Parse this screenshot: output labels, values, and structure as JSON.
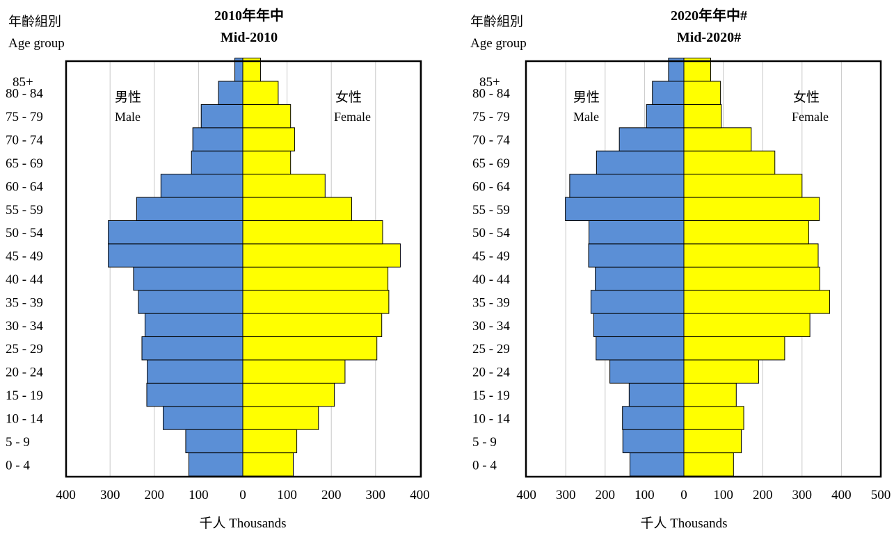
{
  "colors": {
    "male": "#5b8fd6",
    "female": "#ffff00",
    "grid": "#c8c8c8",
    "frame": "#000000"
  },
  "charts": [
    {
      "title_line1": "2010年年中",
      "title_line2": "Mid-2010",
      "agegroup_zh": "年齡組別",
      "agegroup_en": "Age group",
      "male_zh": "男性",
      "male_en": "Male",
      "female_zh": "女性",
      "female_en": "Female",
      "xlabel": "千人  Thousands",
      "x_ticks": [
        "400",
        "300",
        "200",
        "100",
        "0",
        "100",
        "200",
        "300",
        "400"
      ]
    },
    {
      "title_line1": "2020年年中#",
      "title_line2": "Mid-2020#",
      "agegroup_zh": "年齡組別",
      "agegroup_en": "Age group",
      "male_zh": "男性",
      "male_en": "Male",
      "female_zh": "女性",
      "female_en": "Female",
      "xlabel": "千人  Thousands",
      "x_ticks": [
        "400",
        "300",
        "200",
        "100",
        "0",
        "100",
        "200",
        "300",
        "400",
        "500"
      ]
    }
  ],
  "chart_data": [
    {
      "type": "bar",
      "orientation": "horizontal-population-pyramid",
      "title": "2010年年中 Mid-2010",
      "xlabel": "千人 Thousands",
      "ylabel": "年齡組別 Age group",
      "xlim_male": [
        0,
        400
      ],
      "xlim_female": [
        0,
        400
      ],
      "grid": true,
      "categories": [
        "0 - 4",
        "5 - 9",
        "10 - 14",
        "15 - 19",
        "20 - 24",
        "25 - 29",
        "30 - 34",
        "35 - 39",
        "40 - 44",
        "45 - 49",
        "50 - 54",
        "55 - 59",
        "60 - 64",
        "65 - 69",
        "70 - 74",
        "75 - 79",
        "80 - 84",
        "85+"
      ],
      "series": [
        {
          "name": "男性 Male",
          "values": [
            122,
            129,
            180,
            217,
            216,
            228,
            221,
            236,
            247,
            304,
            304,
            240,
            185,
            116,
            113,
            94,
            55,
            18
          ]
        },
        {
          "name": "女性 Female",
          "values": [
            114,
            122,
            171,
            207,
            231,
            303,
            314,
            330,
            328,
            356,
            316,
            246,
            186,
            108,
            117,
            108,
            80,
            40
          ]
        }
      ]
    },
    {
      "type": "bar",
      "orientation": "horizontal-population-pyramid",
      "title": "2020年年中# Mid-2020#",
      "xlabel": "千人 Thousands",
      "ylabel": "年齡組別 Age group",
      "xlim_male": [
        0,
        400
      ],
      "xlim_female": [
        0,
        500
      ],
      "grid": true,
      "categories": [
        "0 - 4",
        "5 - 9",
        "10 - 14",
        "15 - 19",
        "20 - 24",
        "25 - 29",
        "30 - 34",
        "35 - 39",
        "40 - 44",
        "45 - 49",
        "50 - 54",
        "55 - 59",
        "60 - 64",
        "65 - 69",
        "70 - 74",
        "75 - 79",
        "80 - 84",
        "85+"
      ],
      "series": [
        {
          "name": "男性 Male",
          "values": [
            137,
            155,
            156,
            139,
            188,
            223,
            229,
            236,
            225,
            242,
            241,
            301,
            290,
            222,
            164,
            95,
            80,
            39
          ]
        },
        {
          "name": "女性 Female",
          "values": [
            126,
            146,
            152,
            133,
            190,
            256,
            320,
            370,
            345,
            341,
            317,
            344,
            300,
            231,
            171,
            95,
            93,
            68
          ]
        }
      ]
    }
  ]
}
